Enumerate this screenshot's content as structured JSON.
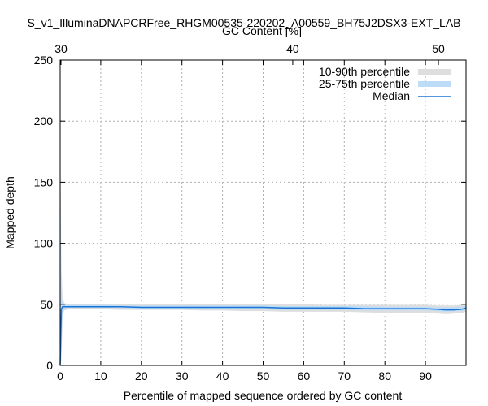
{
  "chart_data": {
    "type": "area",
    "title": "S_v1_IlluminaDNAPCRFree_RHGM00535-220202_A00559_BH75J2DSX3-EXT_LAB",
    "xlabel": "Percentile of mapped sequence ordered by GC content",
    "ylabel": "Mapped depth",
    "x2label": "GC Content [%]",
    "xlim": [
      0,
      100
    ],
    "ylim": [
      0,
      250
    ],
    "xticks": [
      0,
      10,
      20,
      30,
      40,
      50,
      60,
      70,
      80,
      90
    ],
    "xtick_labels": [
      "0",
      "10",
      "20",
      "30",
      "40",
      "50",
      "60",
      "70",
      "80",
      "90"
    ],
    "yticks": [
      0,
      50,
      100,
      150,
      200,
      250
    ],
    "ytick_labels": [
      "0",
      "50",
      "100",
      "150",
      "200",
      "250"
    ],
    "x2ticks": [
      {
        "percentile": 0.2,
        "label": "30"
      },
      {
        "percentile": 57.3,
        "label": "40"
      },
      {
        "percentile": 93.2,
        "label": "50"
      }
    ],
    "grid": true,
    "legend_position": "top-right",
    "legend": [
      {
        "label": "10-90th percentile",
        "color": "#dedede",
        "style": "band"
      },
      {
        "label": "25-75th percentile",
        "color": "#bddcf7",
        "style": "band"
      },
      {
        "label": "Median",
        "color": "#1a74d4",
        "style": "line"
      }
    ],
    "series": {
      "x": [
        0,
        0.3,
        0.6,
        1,
        2,
        5,
        10,
        15,
        20,
        25,
        30,
        35,
        40,
        45,
        50,
        55,
        60,
        65,
        70,
        75,
        80,
        85,
        90,
        93,
        95,
        97,
        99,
        100
      ],
      "p10": [
        0,
        3,
        40,
        45,
        46,
        46,
        46,
        45.5,
        45.5,
        45.5,
        45.5,
        45,
        45,
        44.5,
        44.5,
        44,
        44,
        44,
        44,
        43.5,
        43,
        43,
        43,
        42.5,
        42,
        42.5,
        43,
        44
      ],
      "p90": [
        200,
        80,
        55,
        51,
        50,
        50,
        50,
        50,
        50,
        50,
        50,
        50,
        50,
        50,
        50,
        50,
        50,
        49.5,
        49.5,
        49.5,
        49.5,
        49.5,
        49.5,
        49,
        49,
        49,
        49.5,
        51
      ],
      "p25": [
        0,
        10,
        44,
        46.5,
        47,
        47,
        47,
        47,
        46.5,
        46.5,
        46.5,
        46.5,
        46.5,
        46,
        46,
        45.5,
        45.5,
        45.5,
        45.5,
        45,
        45,
        45,
        45,
        44.5,
        44,
        44.5,
        44.5,
        45.5
      ],
      "p75": [
        180,
        60,
        50,
        49.5,
        49.5,
        49.5,
        49.5,
        49,
        49,
        49,
        49,
        49,
        49,
        49,
        49,
        48.5,
        48.5,
        48.5,
        48.5,
        48.5,
        48,
        48,
        48,
        47.5,
        47.5,
        47.5,
        48,
        49
      ],
      "median": [
        0,
        46,
        48,
        48,
        48,
        48,
        48,
        48,
        47.5,
        47.5,
        47.5,
        47.5,
        47.5,
        47.5,
        47.5,
        47,
        47,
        47,
        47,
        46.5,
        46.5,
        46.5,
        46.5,
        46,
        45.5,
        45.5,
        46,
        47
      ]
    }
  }
}
